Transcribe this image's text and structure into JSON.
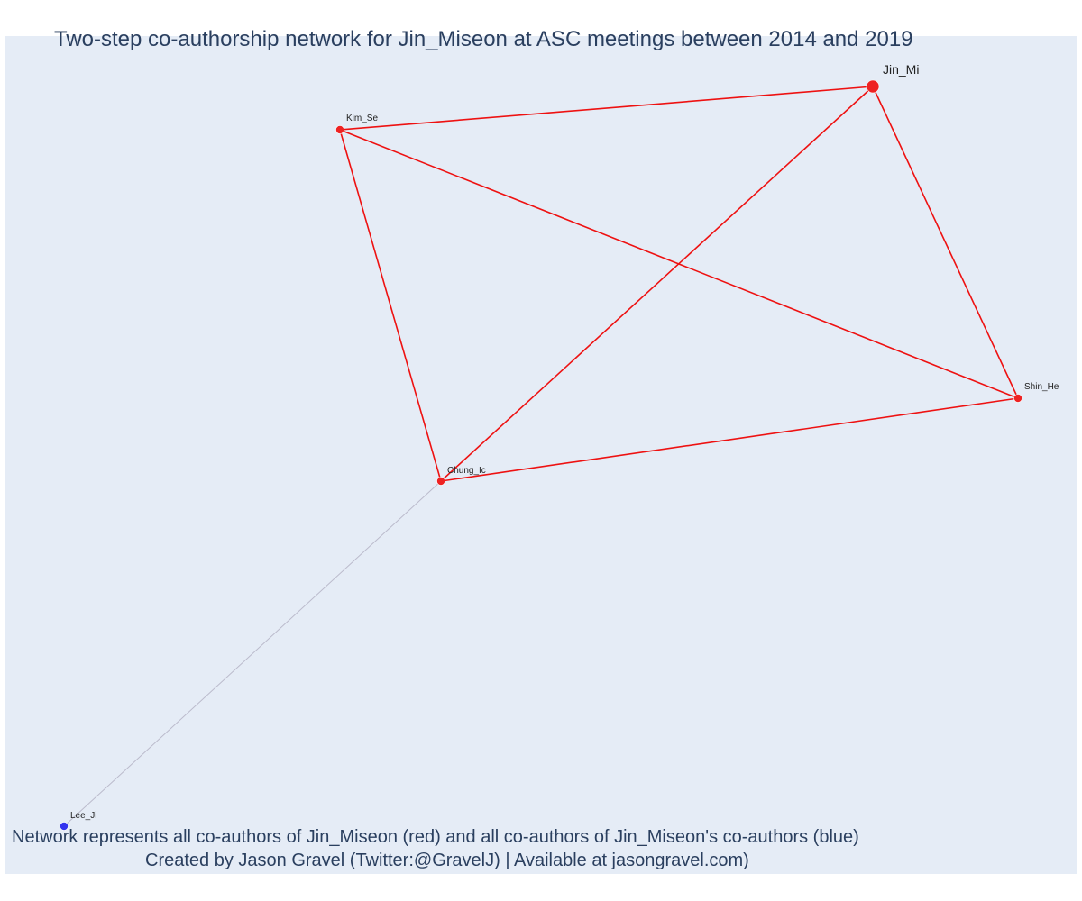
{
  "title": "Two-step co-authorship network for Jin_Miseon at ASC meetings between 2014 and 2019",
  "caption": {
    "line1": "Network represents all co-authors of Jin_Miseon (red) and all co-authors of Jin_Miseon's co-authors (blue)",
    "line2": "Created by Jason Gravel (Twitter:@GravelJ) | Available at jasongravel.com)"
  },
  "colors": {
    "plot_background": "#e5ecf6",
    "first_degree": "#ee2222",
    "second_degree": "#3333ee",
    "first_degree_edge": "#ee1111",
    "second_degree_edge": "#bbbbcc",
    "text": "#2a3f5f"
  },
  "nodes": [
    {
      "id": "Jin_Mi",
      "label": "Jin_Mi",
      "group": "focal"
    },
    {
      "id": "Kim_Se",
      "label": "Kim_Se",
      "group": "first"
    },
    {
      "id": "Shin_He",
      "label": "Shin_He",
      "group": "first"
    },
    {
      "id": "Chung_Ic",
      "label": "Chung_Ic",
      "group": "first"
    },
    {
      "id": "Lee_Ji",
      "label": "Lee_Ji",
      "group": "second"
    }
  ],
  "edges": [
    {
      "source": "Jin_Mi",
      "target": "Kim_Se",
      "group": "first"
    },
    {
      "source": "Jin_Mi",
      "target": "Shin_He",
      "group": "first"
    },
    {
      "source": "Jin_Mi",
      "target": "Chung_Ic",
      "group": "first"
    },
    {
      "source": "Kim_Se",
      "target": "Shin_He",
      "group": "first"
    },
    {
      "source": "Kim_Se",
      "target": "Chung_Ic",
      "group": "first"
    },
    {
      "source": "Chung_Ic",
      "target": "Shin_He",
      "group": "first"
    },
    {
      "source": "Chung_Ic",
      "target": "Lee_Ji",
      "group": "second"
    }
  ]
}
